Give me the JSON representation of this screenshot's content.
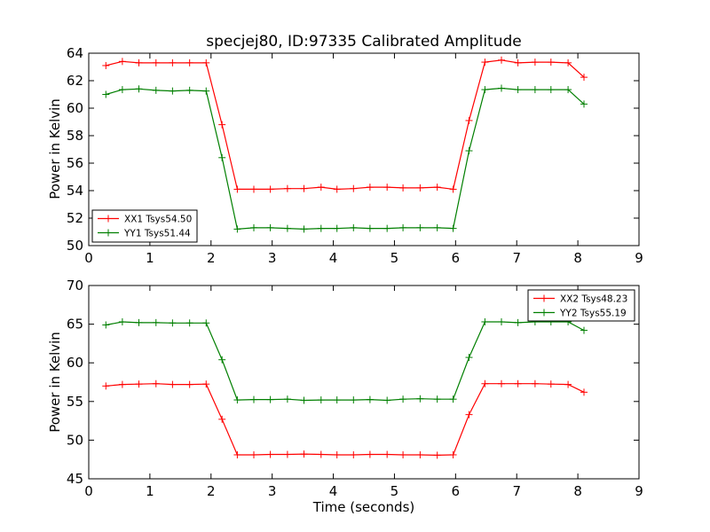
{
  "figure": {
    "title": "specjej80, ID:97335 Calibrated Amplitude"
  },
  "colors": {
    "red": "#ff0000",
    "green": "#007f00"
  },
  "chart_data": [
    {
      "type": "line",
      "title": "specjej80, ID:97335 Calibrated Amplitude",
      "xlabel": "",
      "ylabel": "Power in Kelvin",
      "xlim": [
        0,
        9
      ],
      "ylim": [
        50,
        64
      ],
      "xticks": [
        0,
        1,
        2,
        3,
        4,
        5,
        6,
        7,
        8,
        9
      ],
      "yticks": [
        50,
        52,
        54,
        56,
        58,
        60,
        62,
        64
      ],
      "grid": false,
      "legend_position": "lower-left",
      "x": [
        0.28,
        0.55,
        0.82,
        1.1,
        1.37,
        1.65,
        1.92,
        2.18,
        2.43,
        2.7,
        2.97,
        3.25,
        3.52,
        3.8,
        4.06,
        4.33,
        4.6,
        4.88,
        5.14,
        5.42,
        5.7,
        5.96,
        6.22,
        6.48,
        6.75,
        7.02,
        7.3,
        7.56,
        7.84,
        8.1
      ],
      "series": [
        {
          "name": "XX1 Tsys54.50",
          "color": "#ff0000",
          "values": [
            63.1,
            63.4,
            63.3,
            63.3,
            63.3,
            63.3,
            63.3,
            58.8,
            54.1,
            54.1,
            54.1,
            54.15,
            54.15,
            54.25,
            54.1,
            54.15,
            54.25,
            54.25,
            54.2,
            54.2,
            54.25,
            54.1,
            59.1,
            63.35,
            63.5,
            63.3,
            63.35,
            63.35,
            63.3,
            62.25
          ]
        },
        {
          "name": "YY1 Tsys51.44",
          "color": "#007f00",
          "values": [
            61.0,
            61.35,
            61.4,
            61.3,
            61.25,
            61.3,
            61.25,
            56.4,
            51.2,
            51.3,
            51.3,
            51.25,
            51.2,
            51.25,
            51.25,
            51.3,
            51.25,
            51.25,
            51.3,
            51.3,
            51.3,
            51.25,
            56.9,
            61.35,
            61.45,
            61.35,
            61.35,
            61.35,
            61.35,
            60.3
          ]
        }
      ]
    },
    {
      "type": "line",
      "title": "",
      "xlabel": "Time (seconds)",
      "ylabel": "Power in Kelvin",
      "xlim": [
        0,
        9
      ],
      "ylim": [
        45,
        70
      ],
      "xticks": [
        0,
        1,
        2,
        3,
        4,
        5,
        6,
        7,
        8,
        9
      ],
      "yticks": [
        45,
        50,
        55,
        60,
        65,
        70
      ],
      "grid": false,
      "legend_position": "upper-right",
      "x": [
        0.28,
        0.55,
        0.82,
        1.1,
        1.37,
        1.65,
        1.92,
        2.18,
        2.43,
        2.7,
        2.97,
        3.25,
        3.52,
        3.8,
        4.06,
        4.33,
        4.6,
        4.88,
        5.14,
        5.42,
        5.7,
        5.96,
        6.22,
        6.48,
        6.75,
        7.02,
        7.3,
        7.56,
        7.84,
        8.1
      ],
      "series": [
        {
          "name": "XX2 Tsys48.23",
          "color": "#ff0000",
          "values": [
            57.0,
            57.2,
            57.25,
            57.3,
            57.2,
            57.2,
            57.25,
            52.7,
            48.1,
            48.1,
            48.15,
            48.15,
            48.2,
            48.15,
            48.1,
            48.1,
            48.15,
            48.15,
            48.1,
            48.1,
            48.05,
            48.1,
            53.3,
            57.3,
            57.3,
            57.3,
            57.3,
            57.25,
            57.2,
            56.2
          ]
        },
        {
          "name": "YY2 Tsys55.19",
          "color": "#007f00",
          "values": [
            64.9,
            65.3,
            65.2,
            65.2,
            65.15,
            65.15,
            65.15,
            60.4,
            55.2,
            55.25,
            55.25,
            55.3,
            55.15,
            55.2,
            55.2,
            55.2,
            55.25,
            55.15,
            55.3,
            55.35,
            55.3,
            55.3,
            60.7,
            65.3,
            65.3,
            65.2,
            65.3,
            65.3,
            65.3,
            64.2
          ]
        }
      ]
    }
  ]
}
